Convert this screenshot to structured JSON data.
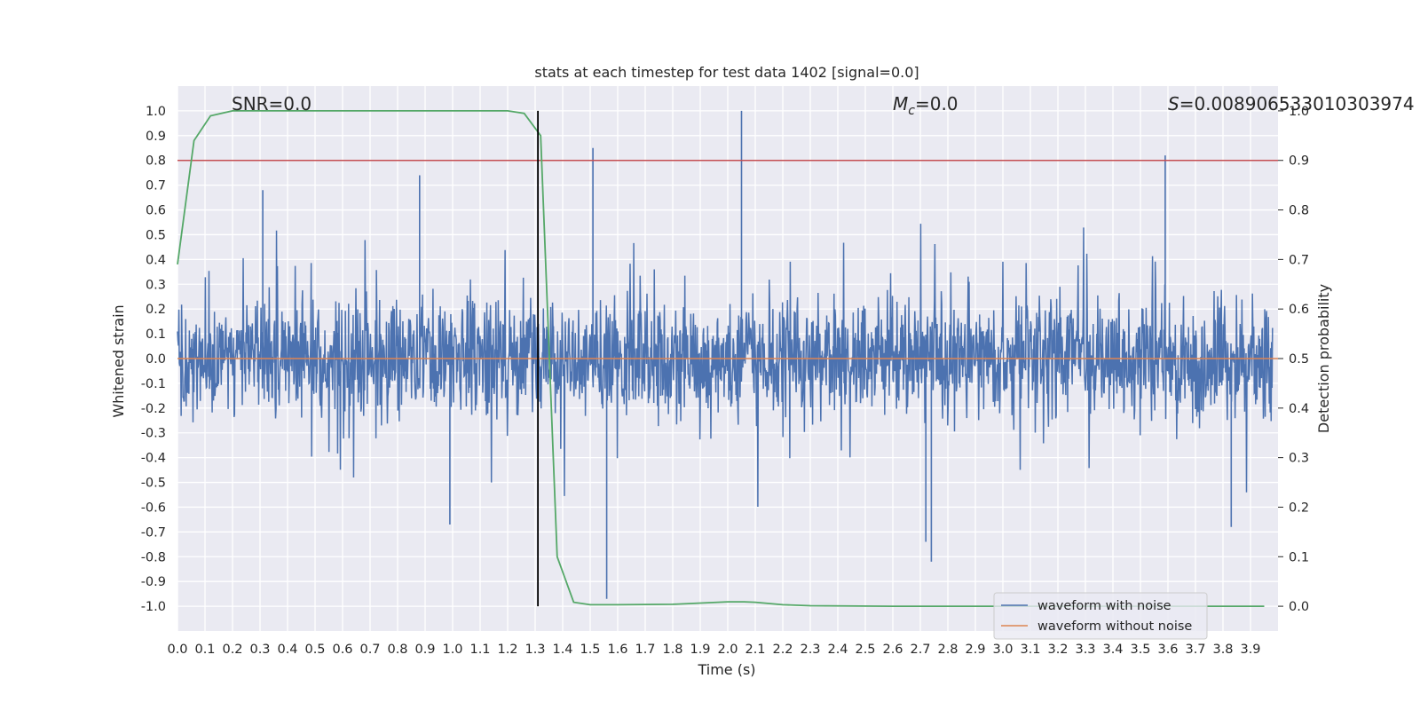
{
  "chart_data": {
    "type": "line",
    "title": "stats at each timestep for test data 1402 [signal=0.0]",
    "xlabel": "Time (s)",
    "ylabel": "Whitened strain",
    "ylabel_right": "Detection probability",
    "xlim": [
      0.0,
      4.0
    ],
    "ylim": [
      -1.1,
      1.1
    ],
    "ylim_right": [
      -0.05,
      1.05
    ],
    "x_ticks": [
      "0.0",
      "0.1",
      "0.2",
      "0.3",
      "0.4",
      "0.5",
      "0.6",
      "0.7",
      "0.8",
      "0.9",
      "1.0",
      "1.1",
      "1.2",
      "1.3",
      "1.4",
      "1.5",
      "1.6",
      "1.7",
      "1.8",
      "1.9",
      "2.0",
      "2.1",
      "2.2",
      "2.3",
      "2.4",
      "2.5",
      "2.6",
      "2.7",
      "2.8",
      "2.9",
      "3.0",
      "3.1",
      "3.2",
      "3.3",
      "3.4",
      "3.5",
      "3.6",
      "3.7",
      "3.8",
      "3.9"
    ],
    "y_ticks": [
      "1.0",
      "0.9",
      "0.8",
      "0.7",
      "0.6",
      "0.5",
      "0.4",
      "0.3",
      "0.2",
      "0.1",
      "0.0",
      "-0.1",
      "-0.2",
      "-0.3",
      "-0.4",
      "-0.5",
      "-0.6",
      "-0.7",
      "-0.8",
      "-0.9",
      "-1.0"
    ],
    "y_ticks_right": [
      "1.0",
      "0.9",
      "0.8",
      "0.7",
      "0.6",
      "0.5",
      "0.4",
      "0.3",
      "0.2",
      "0.1",
      "0.0"
    ],
    "grid": true,
    "legend_position": "lower-right",
    "annotations": {
      "snr": "SNR=0.0",
      "mc_symbol": "M",
      "mc_subscript": "c",
      "mc_value": "=0.0",
      "s_symbol": "S",
      "s_value": "=0.008906533010303974"
    },
    "series": [
      {
        "name": "waveform with noise",
        "color": "#4c72b0",
        "axis": "left",
        "description": "dense noisy whitened strain, ~4096 Hz samples",
        "envelope_upper_typical": 0.45,
        "envelope_lower_typical": -0.4,
        "peaks": [
          {
            "x": 1.51,
            "y": 0.85
          },
          {
            "x": 2.05,
            "y": 1.0
          },
          {
            "x": 3.59,
            "y": 0.82
          },
          {
            "x": 0.88,
            "y": 0.74
          },
          {
            "x": 0.31,
            "y": 0.68
          },
          {
            "x": 1.56,
            "y": -0.97
          },
          {
            "x": 2.74,
            "y": -0.82
          },
          {
            "x": 2.72,
            "y": -0.74
          },
          {
            "x": 3.83,
            "y": -0.68
          },
          {
            "x": 0.99,
            "y": -0.67
          }
        ]
      },
      {
        "name": "waveform without noise",
        "color": "#dd8452",
        "axis": "left",
        "x": [
          0.0,
          4.0
        ],
        "y": [
          0.0,
          0.0
        ]
      },
      {
        "name": "detection probability",
        "color": "#55a868",
        "axis": "right",
        "x": [
          0.0,
          0.06,
          0.12,
          0.2,
          0.4,
          0.8,
          1.2,
          1.26,
          1.32,
          1.38,
          1.44,
          1.5,
          1.6,
          1.8,
          2.0,
          2.06,
          2.1,
          2.2,
          2.3,
          2.6,
          3.0,
          3.5,
          3.95
        ],
        "y": [
          0.69,
          0.94,
          0.99,
          1.0,
          1.0,
          1.0,
          1.0,
          0.995,
          0.95,
          0.1,
          0.008,
          0.003,
          0.003,
          0.004,
          0.009,
          0.009,
          0.008,
          0.003,
          0.001,
          0.0,
          0.0,
          0.0,
          0.0
        ]
      }
    ],
    "hlines": [
      {
        "y_right": 0.9,
        "color": "#c44e52"
      }
    ],
    "vlines": [
      {
        "x": 1.31,
        "y_from": -1.0,
        "y_to": 1.0,
        "color": "#000000"
      }
    ],
    "legend": [
      {
        "label": "waveform with noise",
        "color": "#4c72b0"
      },
      {
        "label": "waveform without noise",
        "color": "#dd8452"
      }
    ],
    "colors": {
      "plot_bg": "#eaeaf2",
      "grid": "#ffffff",
      "text": "#262626"
    }
  }
}
